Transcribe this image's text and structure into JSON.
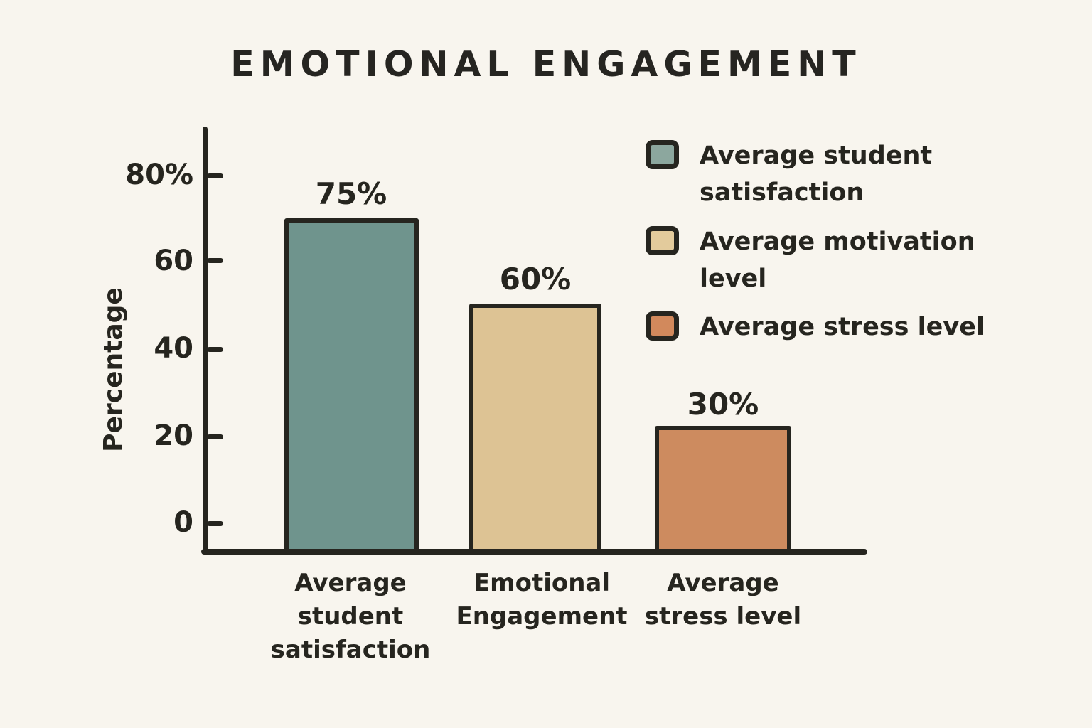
{
  "page": {
    "background_color": "#f8f5ee",
    "ink_color": "#26251f"
  },
  "header": {
    "title": "EMOTIONAL ENGAGEMENT"
  },
  "chart_data": {
    "type": "bar",
    "title": "EMOTIONAL ENGAGEMENT",
    "xlabel": "",
    "ylabel": "Percentage",
    "ylim": [
      0,
      90
    ],
    "grid": false,
    "legend_position": "upper right",
    "yticks": [
      "80%",
      "60",
      "40",
      "20",
      "0"
    ],
    "categories": [
      "Average student satisfaction",
      "Emotional Engagement",
      "Average stress level"
    ],
    "values": [
      75,
      60,
      30
    ],
    "bars": [
      {
        "value": 75,
        "value_label": "75%",
        "color": "#6f948d",
        "category_lines": [
          "Average",
          "student",
          "satisfaction"
        ]
      },
      {
        "value": 60,
        "value_label": "60%",
        "color": "#ddc394",
        "category_lines": [
          "Emotional",
          "Engagement"
        ]
      },
      {
        "value": 30,
        "value_label": "30%",
        "color": "#cd8b5f",
        "category_lines": [
          "Average",
          "stress level"
        ]
      }
    ],
    "legend": [
      {
        "label": "Average student satisfaction",
        "lines": [
          "Average student",
          "satisfaction"
        ],
        "color": "#8ca79e"
      },
      {
        "label": "Average motivation level",
        "lines": [
          "Average motivation",
          "level"
        ],
        "color": "#e3cb9c"
      },
      {
        "label": "Average stress level",
        "lines": [
          "Average stress level"
        ],
        "color": "#d2895c"
      }
    ]
  }
}
